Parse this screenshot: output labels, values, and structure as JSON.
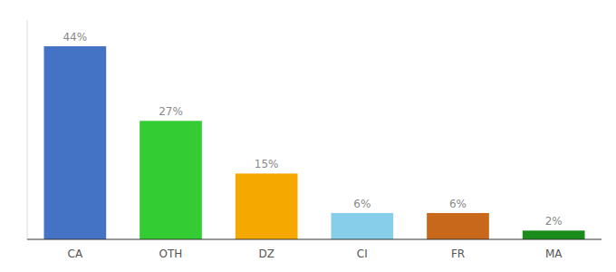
{
  "chart_data": {
    "type": "bar",
    "categories": [
      "CA",
      "OTH",
      "DZ",
      "CI",
      "FR",
      "MA"
    ],
    "values": [
      44,
      27,
      15,
      6,
      6,
      2
    ],
    "value_labels": [
      "44%",
      "27%",
      "15%",
      "6%",
      "6%",
      "2%"
    ],
    "colors": [
      "#4472c4",
      "#33cc33",
      "#f5a800",
      "#87ceeb",
      "#c8681a",
      "#1a8c1a"
    ],
    "ylim": [
      0,
      50
    ],
    "data_labels": true,
    "tick_labels": "x"
  }
}
